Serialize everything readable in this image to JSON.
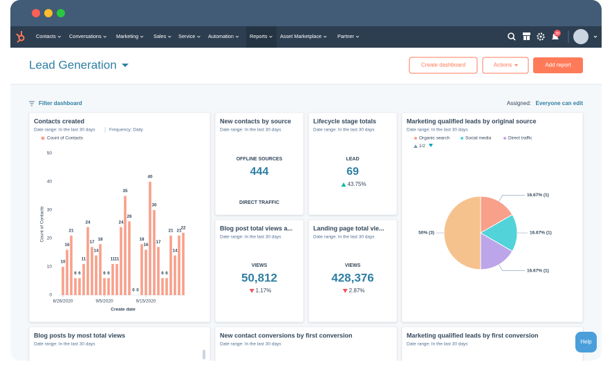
{
  "window": {
    "nav": [
      "Contacts",
      "Conversations",
      "Marketing",
      "Sales",
      "Service",
      "Automation",
      "Reports",
      "Asset Marketplace",
      "Partner"
    ],
    "active_nav": 6,
    "notification_count": "39"
  },
  "header": {
    "title": "Lead Generation",
    "buttons": [
      "Create dashboard",
      "Actions",
      "Add report"
    ]
  },
  "toolbar": {
    "filter": "Filter dashboard",
    "assigned_label": "Assigned:",
    "assigned_value": "Everyone can edit"
  },
  "cards": [
    {
      "title": "New contacts by source",
      "subtitle": "Date range: In the last 30 days",
      "metrics": [
        {
          "label": "OFFLINE SOURCES",
          "value": "444"
        },
        {
          "label": "DIRECT TRAFFIC"
        }
      ]
    },
    {
      "title": "Lifecycle stage totals",
      "subtitle": "Date range: In the last 30 days",
      "metrics": [
        {
          "label": "LEAD",
          "value": "69",
          "change": "43.75%",
          "direction": "up"
        }
      ]
    },
    {
      "title": "Blog post total views a...",
      "subtitle": "Date range: In the last 30 days",
      "metrics": [
        {
          "label": "VIEWS",
          "value": "50,812",
          "change": "1.17%",
          "direction": "down"
        }
      ]
    },
    {
      "title": "Landing page total vie...",
      "subtitle": "Date range: In the last 30 days",
      "metrics": [
        {
          "label": "VIEWS",
          "value": "428,376",
          "change": "2.87%",
          "direction": "down"
        }
      ]
    }
  ],
  "chart_data": [
    {
      "type": "bar",
      "title": "Contacts created",
      "subtitle": "Date range: In the last 30 days",
      "frequency": "Frequency: Daily",
      "series_name": "Count of Contacts",
      "color": "#f8a08a",
      "ylabel": "Count of Contacts",
      "xlabel": "Create date",
      "categories": [
        "8/26/2020",
        null,
        null,
        null,
        null,
        null,
        null,
        null,
        null,
        null,
        "9/5/2020",
        null,
        null,
        null,
        null,
        null,
        null,
        null,
        null,
        null,
        "9/15/2020",
        null,
        null,
        null,
        null,
        null,
        null,
        null,
        null,
        null
      ],
      "values": [
        10,
        16,
        21,
        6,
        6,
        11,
        24,
        17,
        14,
        18,
        6,
        6,
        11,
        11,
        24,
        35,
        26,
        0,
        0,
        18,
        16,
        40,
        30,
        17,
        6,
        6,
        21,
        14,
        21,
        22
      ],
      "ylim": [
        0,
        50
      ],
      "yticks": [
        0,
        10,
        20,
        30,
        40,
        50
      ]
    },
    {
      "type": "pie",
      "title": "Marketing qualified leads by original source",
      "subtitle": "Date range: In the last 30 days",
      "categories": [
        "Organic search",
        "Social media",
        "Direct traffic",
        null
      ],
      "values": [
        16.67,
        16.67,
        16.67,
        50
      ],
      "value_labels": [
        "16.67% (1)",
        "16.67% (1)",
        "16.67% (1)",
        "50% (3)"
      ],
      "colors": [
        "#f8a08a",
        "#51d3d9",
        "#bda5ea",
        "#f5c28e"
      ],
      "legend_page": "1/2"
    }
  ],
  "bottom_cards": [
    {
      "title": "Blog posts by most total views",
      "subtitle": "Date range: In the last 30 days"
    },
    {
      "title": "New contact conversions by first conversion",
      "subtitle": "Date range: In the last 30 days"
    },
    {
      "title": "Marketing qualified leads by first conversion",
      "subtitle": "Date range: In the last 30 days"
    }
  ],
  "help": "Help"
}
